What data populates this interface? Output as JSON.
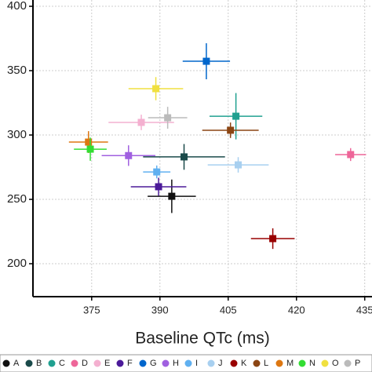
{
  "chart_data": {
    "type": "scatter",
    "xlabel": "Baseline QTc (ms)",
    "xlim": [
      362.1,
      436.6
    ],
    "xticks": [
      375,
      390,
      405,
      420,
      435
    ],
    "ylim": [
      174.4,
      404.9
    ],
    "yticks": [
      200,
      250,
      300,
      350,
      400
    ],
    "grid": true,
    "series": [
      {
        "name": "A",
        "color": "#111111",
        "x": [
          392.6
        ],
        "values": [
          252.4
        ],
        "xerr": [
          5.3
        ],
        "yerr": [
          13
        ]
      },
      {
        "name": "B",
        "color": "#1a4a4a",
        "x": [
          395.3
        ],
        "values": [
          283
        ],
        "xerr": [
          9
        ],
        "yerr": [
          10
        ]
      },
      {
        "name": "C",
        "color": "#20a090",
        "x": [
          406.7
        ],
        "values": [
          314.6
        ],
        "xerr": [
          5.8
        ],
        "yerr": [
          18
        ]
      },
      {
        "name": "D",
        "color": "#ee6699",
        "x": [
          431.9
        ],
        "values": [
          284.8
        ],
        "xerr": [
          3.4
        ],
        "yerr": [
          5
        ]
      },
      {
        "name": "E",
        "color": "#f4b0d0",
        "x": [
          385.9
        ],
        "values": [
          309.8
        ],
        "xerr": [
          7.2
        ],
        "yerr": [
          6
        ]
      },
      {
        "name": "F",
        "color": "#4b1a99",
        "x": [
          389.7
        ],
        "values": [
          259.8
        ],
        "xerr": [
          6.1
        ],
        "yerr": [
          7
        ]
      },
      {
        "name": "G",
        "color": "#0066cc",
        "x": [
          400.2
        ],
        "values": [
          357.3
        ],
        "xerr": [
          5.2
        ],
        "yerr": [
          14
        ]
      },
      {
        "name": "H",
        "color": "#a060e0",
        "x": [
          383.1
        ],
        "values": [
          284
        ],
        "xerr": [
          5.9
        ],
        "yerr": [
          8
        ]
      },
      {
        "name": "I",
        "color": "#60b0f0",
        "x": [
          389.3
        ],
        "values": [
          271.3
        ],
        "xerr": [
          3
        ],
        "yerr": [
          5
        ]
      },
      {
        "name": "J",
        "color": "#a8d0f0",
        "x": [
          407.2
        ],
        "values": [
          276.8
        ],
        "xerr": [
          6.7
        ],
        "yerr": [
          6
        ]
      },
      {
        "name": "K",
        "color": "#990000",
        "x": [
          414.8
        ],
        "values": [
          219.5
        ],
        "xerr": [
          4.8
        ],
        "yerr": [
          8
        ]
      },
      {
        "name": "L",
        "color": "#8b4513",
        "x": [
          405.5
        ],
        "values": [
          303.7
        ],
        "xerr": [
          6.2
        ],
        "yerr": [
          6
        ]
      },
      {
        "name": "M",
        "color": "#dd7711",
        "x": [
          374.3
        ],
        "values": [
          294.5
        ],
        "xerr": [
          4.3
        ],
        "yerr": [
          8.5
        ]
      },
      {
        "name": "N",
        "color": "#33dd33",
        "x": [
          374.7
        ],
        "values": [
          289
        ],
        "xerr": [
          3.6
        ],
        "yerr": [
          9
        ]
      },
      {
        "name": "O",
        "color": "#f0e040",
        "x": [
          389.1
        ],
        "values": [
          336
        ],
        "xerr": [
          6
        ],
        "yerr": [
          9
        ]
      },
      {
        "name": "P",
        "color": "#bbbbbb",
        "x": [
          391.7
        ],
        "values": [
          313.4
        ],
        "xerr": [
          4.3
        ],
        "yerr": [
          8.5
        ]
      }
    ]
  }
}
